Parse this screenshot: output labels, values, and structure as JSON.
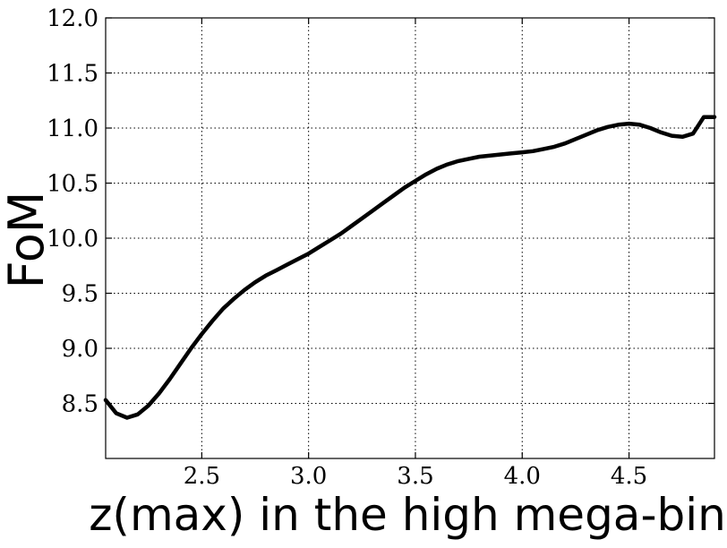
{
  "chart_data": {
    "type": "line",
    "title": "",
    "xlabel": "z(max) in the high mega-bin",
    "ylabel": "FoM",
    "xlim": [
      2.05,
      4.9
    ],
    "ylim": [
      8.0,
      12.0
    ],
    "xticks": [
      2.5,
      3.0,
      3.5,
      4.0,
      4.5
    ],
    "xtick_labels": [
      "2.5",
      "3.0",
      "3.5",
      "4.0",
      "4.5"
    ],
    "yticks": [
      8.5,
      9.0,
      9.5,
      10.0,
      10.5,
      11.0,
      11.5,
      12.0
    ],
    "ytick_labels": [
      "8.5",
      "9.0",
      "9.5",
      "10.0",
      "10.5",
      "11.0",
      "11.5",
      "12.0"
    ],
    "grid": true,
    "series": [
      {
        "color": "#000000",
        "x": [
          2.05,
          2.1,
          2.15,
          2.2,
          2.25,
          2.3,
          2.35,
          2.4,
          2.45,
          2.5,
          2.55,
          2.6,
          2.65,
          2.7,
          2.75,
          2.8,
          2.85,
          2.9,
          2.95,
          3.0,
          3.05,
          3.1,
          3.15,
          3.2,
          3.25,
          3.3,
          3.35,
          3.4,
          3.45,
          3.5,
          3.55,
          3.6,
          3.65,
          3.7,
          3.75,
          3.8,
          3.85,
          3.9,
          3.95,
          4.0,
          4.05,
          4.1,
          4.15,
          4.2,
          4.25,
          4.3,
          4.35,
          4.4,
          4.45,
          4.5,
          4.55,
          4.6,
          4.65,
          4.7,
          4.75,
          4.8,
          4.85,
          4.9
        ],
        "values": [
          8.53,
          8.41,
          8.37,
          8.4,
          8.48,
          8.59,
          8.72,
          8.86,
          9.0,
          9.13,
          9.25,
          9.36,
          9.45,
          9.53,
          9.6,
          9.66,
          9.71,
          9.76,
          9.81,
          9.86,
          9.92,
          9.98,
          10.04,
          10.11,
          10.18,
          10.25,
          10.32,
          10.39,
          10.46,
          10.52,
          10.58,
          10.63,
          10.67,
          10.7,
          10.72,
          10.74,
          10.75,
          10.76,
          10.77,
          10.78,
          10.79,
          10.81,
          10.83,
          10.86,
          10.9,
          10.94,
          10.98,
          11.01,
          11.03,
          11.04,
          11.03,
          11.0,
          10.96,
          10.93,
          10.92,
          10.95,
          11.1,
          11.1
        ]
      }
    ]
  }
}
